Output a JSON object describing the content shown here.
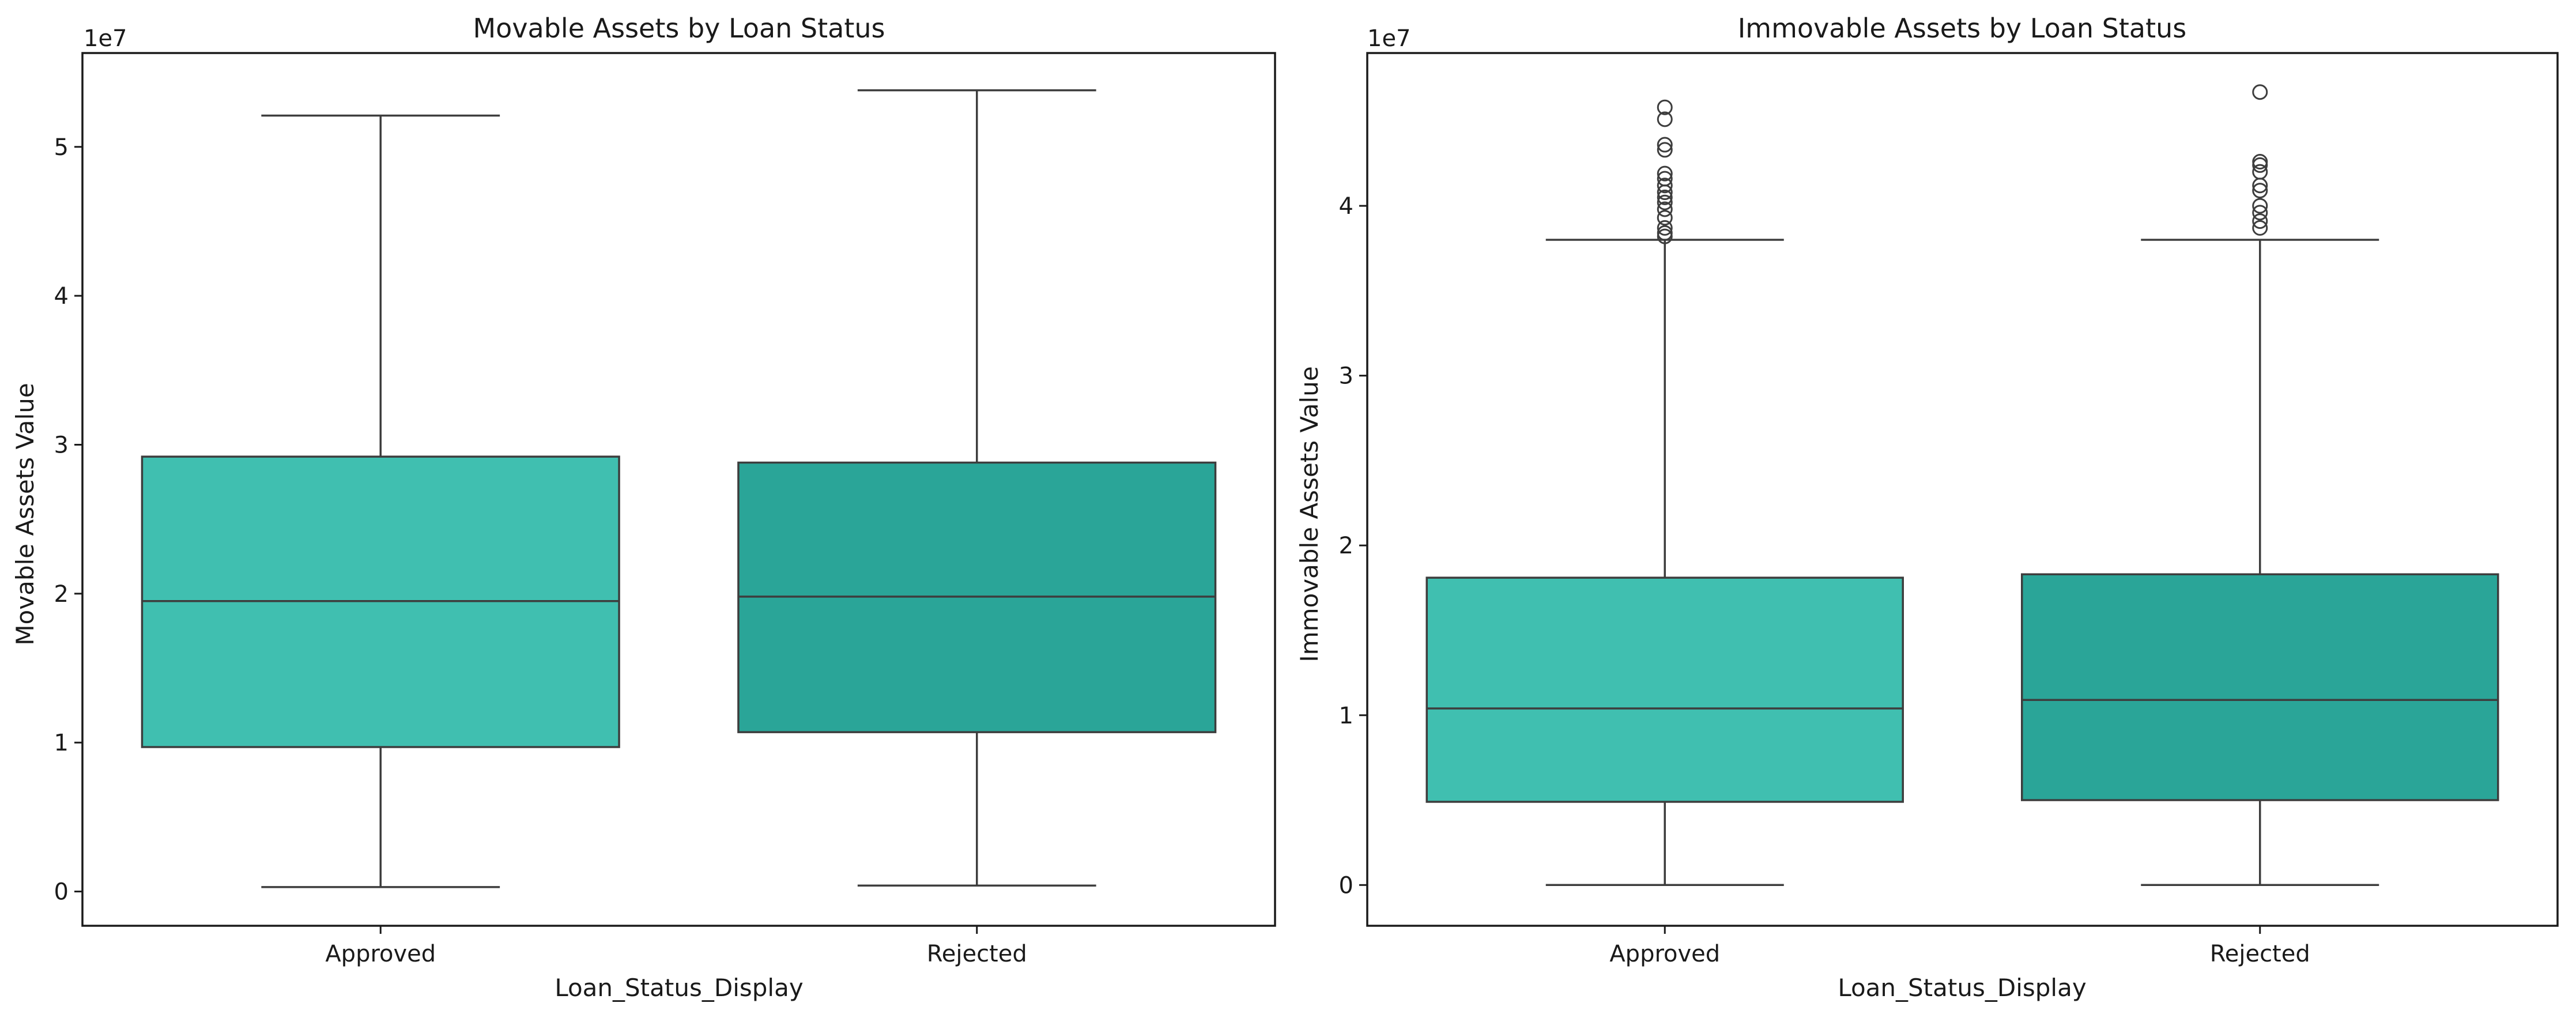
{
  "colors": {
    "approved": "#40bfb0",
    "rejected": "#2aa598",
    "line": "#3d3d3d",
    "frame": "#1a1a1a",
    "outlier": "#3d3d3d"
  },
  "chart_data": [
    {
      "type": "box",
      "title": "Movable Assets by Loan Status",
      "xlabel": "Loan_Status_Display",
      "ylabel": "Movable Assets Value",
      "offset_text": "1e7",
      "categories": [
        "Approved",
        "Rejected"
      ],
      "yticks": [
        0,
        1,
        2,
        3,
        4,
        5
      ],
      "ylim": [
        -0.23,
        5.63
      ],
      "unit_multiplier": 10000000,
      "boxes": [
        {
          "category": "Approved",
          "whisker_low": 0.03,
          "q1": 0.97,
          "median": 1.95,
          "q3": 2.92,
          "whisker_high": 5.21,
          "outliers": []
        },
        {
          "category": "Rejected",
          "whisker_low": 0.04,
          "q1": 1.07,
          "median": 1.98,
          "q3": 2.88,
          "whisker_high": 5.38,
          "outliers": []
        }
      ],
      "grid": false
    },
    {
      "type": "box",
      "title": "Immovable Assets by Loan Status",
      "xlabel": "Loan_Status_Display",
      "ylabel": "Immovable Assets Value",
      "offset_text": "1e7",
      "categories": [
        "Approved",
        "Rejected"
      ],
      "yticks": [
        0,
        1,
        2,
        3,
        4
      ],
      "ylim": [
        -0.24,
        4.9
      ],
      "unit_multiplier": 10000000,
      "boxes": [
        {
          "category": "Approved",
          "whisker_low": 0.0,
          "q1": 0.49,
          "median": 1.04,
          "q3": 1.81,
          "whisker_high": 3.8,
          "outliers": [
            3.82,
            3.84,
            3.87,
            3.93,
            3.98,
            4.02,
            4.05,
            4.08,
            4.12,
            4.16,
            4.19,
            4.33,
            4.36,
            4.51,
            4.58
          ]
        },
        {
          "category": "Rejected",
          "whisker_low": 0.0,
          "q1": 0.5,
          "median": 1.09,
          "q3": 1.83,
          "whisker_high": 3.8,
          "outliers": [
            3.87,
            3.91,
            3.96,
            4.0,
            4.09,
            4.12,
            4.2,
            4.24,
            4.26,
            4.67
          ]
        }
      ],
      "grid": false
    }
  ]
}
